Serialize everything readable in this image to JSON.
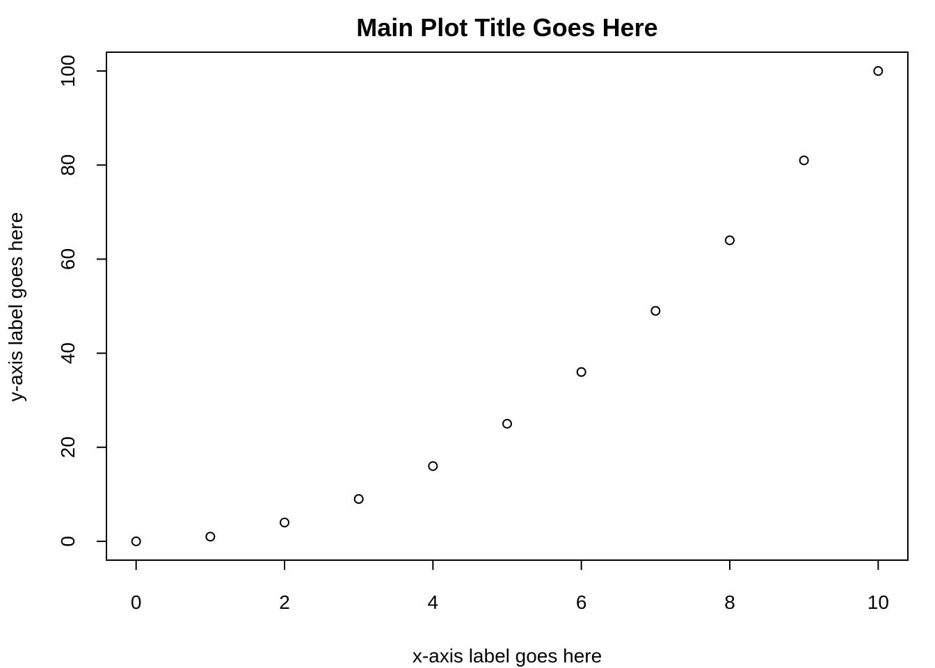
{
  "chart_data": {
    "type": "scatter",
    "title": "Main Plot Title Goes Here",
    "xlabel": "x-axis label goes here",
    "ylabel": "y-axis label goes here",
    "x": [
      0,
      1,
      2,
      3,
      4,
      5,
      6,
      7,
      8,
      9,
      10
    ],
    "y": [
      0,
      1,
      4,
      9,
      16,
      25,
      36,
      49,
      64,
      81,
      100
    ],
    "xlim": [
      -0.4,
      10.4
    ],
    "ylim": [
      -4,
      104
    ],
    "xticks": [
      0,
      2,
      4,
      6,
      8,
      10
    ],
    "yticks": [
      0,
      20,
      40,
      60,
      80,
      100
    ],
    "xtick_labels": [
      "0",
      "2",
      "4",
      "6",
      "8",
      "10"
    ],
    "ytick_labels": [
      "0",
      "20",
      "40",
      "60",
      "80",
      "100"
    ],
    "grid": false,
    "legend": false,
    "marker": "open-circle",
    "point_color": "#000000"
  }
}
